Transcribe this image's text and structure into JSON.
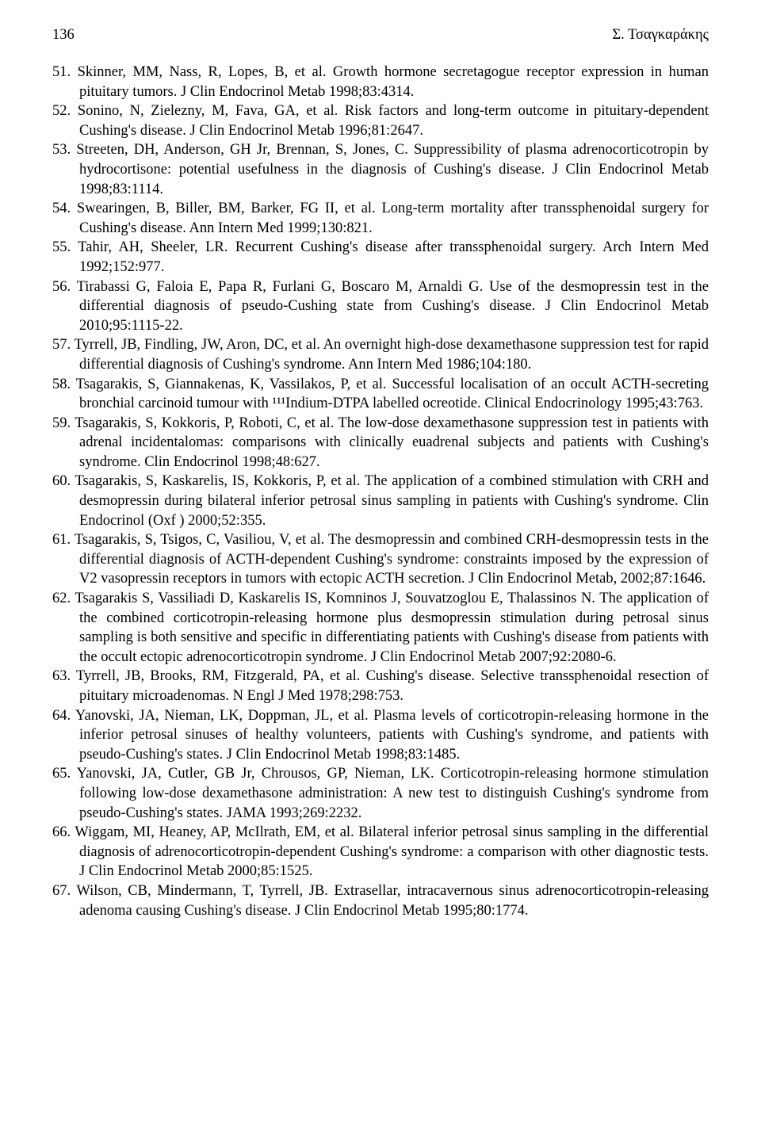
{
  "header": {
    "page_number": "136",
    "running_head": "Σ. Τσαγκαράκης"
  },
  "references": [
    {
      "num": "51.",
      "text": "Skinner, MM, Nass, R, Lopes, B, et al. Growth hormone secretagogue receptor expression in human pituitary tumors. J Clin Endocrinol Metab 1998;83:4314."
    },
    {
      "num": "52.",
      "text": "Sonino, N, Zielezny, M, Fava, GA, et al. Risk factors and long-term outcome in pituitary-dependent Cushing's disease. J Clin Endocrinol Metab 1996;81:2647."
    },
    {
      "num": "53.",
      "text": "Streeten, DH, Anderson, GH Jr, Brennan, S, Jones, C. Suppressibility of plasma adrenocorticotropin by hydrocortisone: potential usefulness in the diagnosis of Cushing's disease. J Clin Endocrinol Metab 1998;83:1114."
    },
    {
      "num": "54.",
      "text": "Swearingen, B, Biller, BM, Barker, FG II, et al. Long-term mortality after transsphenoidal surgery for Cushing's disease. Ann Intern Med 1999;130:821."
    },
    {
      "num": "55.",
      "text": "Tahir, AH, Sheeler, LR. Recurrent Cushing's disease after transsphenoidal surgery. Arch Intern Med 1992;152:977."
    },
    {
      "num": "56.",
      "text": "Tirabassi G, Faloia E, Papa R, Furlani G, Boscaro M, Arnaldi G. Use of the desmopressin test in the differential diagnosis of pseudo-Cushing state from Cushing's disease. J Clin Endocrinol Metab 2010;95:1115-22."
    },
    {
      "num": "57.",
      "text": "Tyrrell, JB, Findling, JW, Aron, DC, et al. An overnight high-dose dexamethasone suppression test for rapid differential diagnosis of Cushing's syndrome. Ann Intern Med 1986;104:180."
    },
    {
      "num": "58.",
      "text": "Tsagarakis, S, Giannakenas, K, Vassilakos, P, et al. Successful localisation of an occult ACTH-secreting bronchial carcinoid tumour with ¹¹¹Indium-DTPA labelled ocreotide. Clinical Endocrinology 1995;43:763."
    },
    {
      "num": "59.",
      "text": "Tsagarakis, S, Kokkoris, P, Roboti, C, et al. The low-dose dexamethasone suppression test in patients with adrenal incidentalomas: comparisons with clinically euadrenal subjects and patients with Cushing's syndrome. Clin Endocrinol 1998;48:627."
    },
    {
      "num": "60.",
      "text": "Tsagarakis, S, Kaskarelis, IS, Kokkoris, P, et al. The application of a combined stimulation with CRH and desmopressin during bilateral inferior petrosal sinus sampling in patients with Cushing's syndrome. Clin Endocrinol (Oxf ) 2000;52:355."
    },
    {
      "num": "61.",
      "text": "Tsagarakis, S, Tsigos, C, Vasiliou, V, et al. The desmopressin and combined CRH-desmopressin tests in the differential diagnosis of ACTH-dependent Cushing's syndrome: constraints imposed by the expression of V2 vasopressin receptors in tumors with ectopic ACTH secretion. J Clin Endocrinol Metab, 2002;87:1646."
    },
    {
      "num": "62.",
      "text": "Tsagarakis S, Vassiliadi D, Kaskarelis IS, Komninos J, Souvatzoglou E, Thalassinos N. The application of the combined corticotropin-releasing hormone plus desmopressin stimulation during petrosal sinus sampling is both sensitive and specific in differentiating patients with Cushing's disease from patients with the occult ectopic adrenocorticotropin syndrome. J Clin Endocrinol Metab 2007;92:2080-6."
    },
    {
      "num": "63.",
      "text": "Tyrrell, JB, Brooks, RM, Fitzgerald, PA, et al. Cushing's disease. Selective transsphenoidal resection of pituitary microadenomas. N Engl J Med 1978;298:753."
    },
    {
      "num": "64.",
      "text": "Yanovski, JA, Nieman, LK, Doppman, JL, et al. Plasma levels of corticotropin-releasing hormone in the inferior petrosal sinuses of healthy volunteers, patients with Cushing's syndrome, and patients with pseudo-Cushing's states. J Clin Endocrinol Metab 1998;83:1485."
    },
    {
      "num": "65.",
      "text": "Yanovski, JA, Cutler, GB Jr, Chrousos, GP, Nieman, LK. Corticotropin-releasing hormone stimulation following low-dose dexamethasone administration: A new test to distinguish Cushing's syndrome from pseudo-Cushing's states. JAMA 1993;269:2232."
    },
    {
      "num": "66.",
      "text": "Wiggam, MI, Heaney, AP, McIlrath, EM, et al. Bilateral inferior petrosal sinus sampling in the differential diagnosis of adrenocorticotropin-dependent Cushing's syndrome: a comparison with other diagnostic tests. J Clin Endocrinol Metab 2000;85:1525."
    },
    {
      "num": "67.",
      "text": "Wilson, CB, Mindermann, T, Tyrrell, JB. Extrasellar, intracavernous sinus adrenocorticotropin-releasing adenoma causing Cushing's disease. J Clin Endocrinol Metab 1995;80:1774."
    }
  ]
}
